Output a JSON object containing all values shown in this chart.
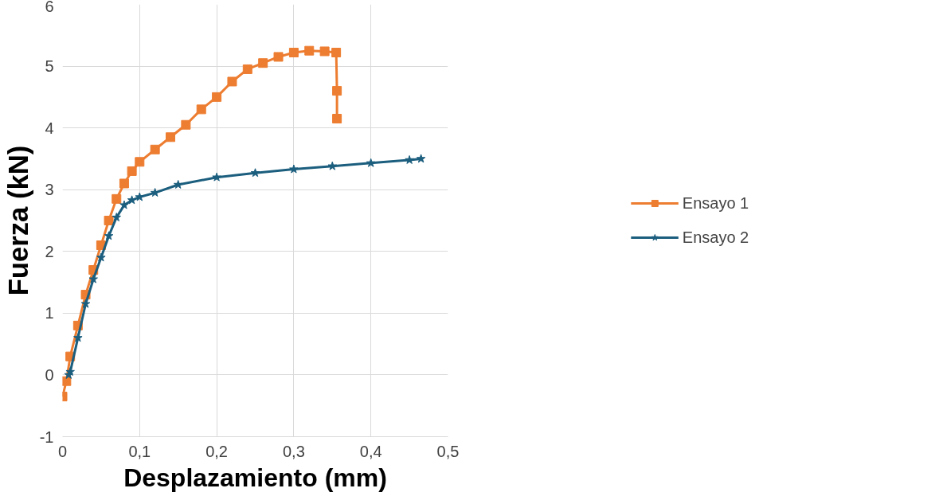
{
  "chart_data": {
    "type": "line",
    "xlabel": "Desplazamiento (mm)",
    "ylabel": "Fuerza (kN)",
    "xlim": [
      0,
      0.5
    ],
    "ylim": [
      -1,
      6
    ],
    "xticks": [
      0,
      {
        "value": 0.1,
        "label": "0,1"
      },
      {
        "value": 0.2,
        "label": "0,2"
      },
      {
        "value": 0.3,
        "label": "0,3"
      },
      {
        "value": 0.4,
        "label": "0,4"
      },
      {
        "value": 0.5,
        "label": "0,5"
      }
    ],
    "yticks": [
      -1,
      0,
      1,
      2,
      3,
      4,
      5,
      6
    ],
    "grid": true,
    "legend": "right",
    "line_style": "solid",
    "series": [
      {
        "name": "Ensayo 1",
        "color": "#ed7d31",
        "marker": "square",
        "x": [
          0.0,
          0.005,
          0.01,
          0.02,
          0.03,
          0.04,
          0.05,
          0.06,
          0.07,
          0.08,
          0.09,
          0.1,
          0.12,
          0.14,
          0.16,
          0.18,
          0.2,
          0.22,
          0.24,
          0.26,
          0.28,
          0.3,
          0.32,
          0.34,
          0.355,
          0.356,
          0.356
        ],
        "values": [
          -0.35,
          -0.1,
          0.3,
          0.8,
          1.3,
          1.7,
          2.1,
          2.5,
          2.85,
          3.1,
          3.3,
          3.45,
          3.65,
          3.85,
          4.05,
          4.3,
          4.5,
          4.75,
          4.95,
          5.05,
          5.15,
          5.22,
          5.25,
          5.24,
          5.22,
          4.6,
          4.15
        ]
      },
      {
        "name": "Ensayo 2",
        "color": "#1b5e7e",
        "marker": "star",
        "x": [
          0.008,
          0.01,
          0.02,
          0.03,
          0.04,
          0.05,
          0.06,
          0.07,
          0.08,
          0.09,
          0.1,
          0.12,
          0.15,
          0.2,
          0.25,
          0.3,
          0.35,
          0.4,
          0.45,
          0.465
        ],
        "values": [
          0.0,
          0.05,
          0.6,
          1.15,
          1.55,
          1.9,
          2.25,
          2.55,
          2.75,
          2.83,
          2.88,
          2.95,
          3.08,
          3.2,
          3.27,
          3.33,
          3.38,
          3.43,
          3.48,
          3.5
        ]
      }
    ]
  }
}
